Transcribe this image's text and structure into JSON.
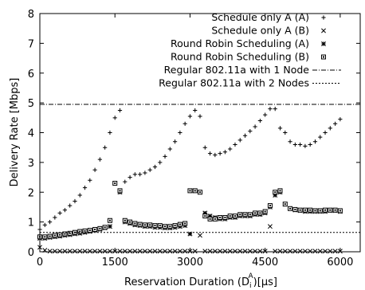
{
  "chart_data": {
    "type": "scatter",
    "xlabel": "Reservation Duration  (D",
    "xlabel_sub": "i",
    "xlabel_sup": "A",
    "xlabel_unit": ")[µs]",
    "ylabel": "Delivery Rate [Mbps]",
    "xlim": [
      0,
      6400
    ],
    "ylim": [
      0,
      8
    ],
    "xticks": [
      0,
      1500,
      3000,
      4500,
      6000
    ],
    "yticks": [
      0,
      1,
      2,
      3,
      4,
      5,
      6,
      7,
      8
    ],
    "legend_position": "top-right",
    "series": [
      {
        "name": "Schedule only A (A)",
        "marker": "plus",
        "x": [
          0,
          100,
          200,
          300,
          400,
          500,
          600,
          700,
          800,
          900,
          1000,
          1100,
          1200,
          1300,
          1400,
          1500,
          1600,
          1700,
          1800,
          1900,
          2000,
          2100,
          2200,
          2300,
          2400,
          2500,
          2600,
          2700,
          2800,
          2900,
          3000,
          3100,
          3200,
          3300,
          3400,
          3500,
          3600,
          3700,
          3800,
          3900,
          4000,
          4100,
          4200,
          4300,
          4400,
          4500,
          4600,
          4700,
          4800,
          4900,
          5000,
          5100,
          5200,
          5300,
          5400,
          5500,
          5600,
          5700,
          5800,
          5900,
          6000
        ],
        "y": [
          0.75,
          0.9,
          1.0,
          1.15,
          1.3,
          1.4,
          1.55,
          1.7,
          1.9,
          2.15,
          2.4,
          2.75,
          3.1,
          3.5,
          4.0,
          4.5,
          4.75,
          2.35,
          2.5,
          2.6,
          2.6,
          2.65,
          2.75,
          2.85,
          3.0,
          3.2,
          3.45,
          3.7,
          4.0,
          4.3,
          4.55,
          4.75,
          4.55,
          3.5,
          3.3,
          3.25,
          3.3,
          3.35,
          3.45,
          3.6,
          3.75,
          3.9,
          4.05,
          4.2,
          4.4,
          4.6,
          4.8,
          4.8,
          4.15,
          4.0,
          3.7,
          3.6,
          3.6,
          3.55,
          3.6,
          3.7,
          3.85,
          4.0,
          4.15,
          4.3,
          4.45
        ]
      },
      {
        "name": "Schedule only A (B)",
        "marker": "cross",
        "x": [
          0,
          100,
          200,
          300,
          400,
          500,
          600,
          700,
          800,
          900,
          1000,
          1100,
          1200,
          1300,
          1400,
          1500,
          1600,
          1700,
          1800,
          1900,
          2000,
          2100,
          2200,
          2300,
          2400,
          2500,
          2600,
          2700,
          2800,
          2900,
          3000,
          3100,
          3200,
          3300,
          3400,
          3500,
          3600,
          3700,
          3800,
          3900,
          4000,
          4100,
          4200,
          4300,
          4400,
          4500,
          4600,
          4700,
          4800,
          4900,
          5000,
          5100,
          5200,
          5300,
          5400,
          5500,
          5600,
          5700,
          5800,
          5900,
          6000
        ],
        "y": [
          0.15,
          0.05,
          0.02,
          0.02,
          0.02,
          0.02,
          0.02,
          0.02,
          0.02,
          0.02,
          0.02,
          0.02,
          0.02,
          0.02,
          0.02,
          0.02,
          0.02,
          0.02,
          0.02,
          0.02,
          0.02,
          0.02,
          0.02,
          0.02,
          0.02,
          0.02,
          0.02,
          0.02,
          0.02,
          0.02,
          0.02,
          0.02,
          0.55,
          0.02,
          0.02,
          0.02,
          0.02,
          0.02,
          0.02,
          0.02,
          0.02,
          0.02,
          0.02,
          0.02,
          0.02,
          0.02,
          0.85,
          0.02,
          0.02,
          0.02,
          0.02,
          0.02,
          0.02,
          0.02,
          0.02,
          0.02,
          0.02,
          0.02,
          0.02,
          0.02,
          0.02
        ]
      },
      {
        "name": "Round Robin Scheduling (A)",
        "marker": "asterisk",
        "x": [
          0,
          100,
          200,
          300,
          400,
          500,
          600,
          700,
          800,
          900,
          1000,
          1100,
          1200,
          1300,
          1400,
          1500,
          1600,
          1700,
          1800,
          1900,
          2000,
          2100,
          2200,
          2300,
          2400,
          2500,
          2600,
          2700,
          2800,
          2900,
          3000,
          3100,
          3200,
          3300,
          3400,
          3500,
          3600,
          3700,
          3800,
          3900,
          4000,
          4100,
          4200,
          4300,
          4400,
          4500,
          4600,
          4700,
          4800,
          4900,
          5000,
          5100,
          5200,
          5300,
          5400,
          5500,
          5600,
          5700,
          5800,
          5900,
          6000
        ],
        "y": [
          0.45,
          0.45,
          0.48,
          0.5,
          0.52,
          0.55,
          0.57,
          0.6,
          0.62,
          0.65,
          0.68,
          0.72,
          0.75,
          0.8,
          0.85,
          2.3,
          2.0,
          1.0,
          0.95,
          0.9,
          0.88,
          0.85,
          0.85,
          0.82,
          0.82,
          0.8,
          0.8,
          0.82,
          0.85,
          0.88,
          0.6,
          2.05,
          2.0,
          1.3,
          1.2,
          1.15,
          1.1,
          1.1,
          1.15,
          1.15,
          1.2,
          1.2,
          1.2,
          1.25,
          1.25,
          1.3,
          1.5,
          1.9,
          2.0,
          1.6,
          1.45,
          1.4,
          1.38,
          1.35,
          1.35,
          1.35,
          1.35,
          1.35,
          1.38,
          1.38,
          1.35
        ]
      },
      {
        "name": "Round Robin Scheduling (B)",
        "marker": "square",
        "x": [
          0,
          100,
          200,
          300,
          400,
          500,
          600,
          700,
          800,
          900,
          1000,
          1100,
          1200,
          1300,
          1400,
          1500,
          1600,
          1700,
          1800,
          1900,
          2000,
          2100,
          2200,
          2300,
          2400,
          2500,
          2600,
          2700,
          2800,
          2900,
          3000,
          3100,
          3200,
          3300,
          3400,
          3500,
          3600,
          3700,
          3800,
          3900,
          4000,
          4100,
          4200,
          4300,
          4400,
          4500,
          4600,
          4700,
          4800,
          4900,
          5000,
          5100,
          5200,
          5300,
          5400,
          5500,
          5600,
          5700,
          5800,
          5900,
          6000
        ],
        "y": [
          0.5,
          0.5,
          0.52,
          0.55,
          0.57,
          0.6,
          0.62,
          0.65,
          0.68,
          0.7,
          0.72,
          0.75,
          0.78,
          0.82,
          1.05,
          2.3,
          2.05,
          1.05,
          1.0,
          0.95,
          0.92,
          0.9,
          0.9,
          0.88,
          0.88,
          0.85,
          0.85,
          0.88,
          0.92,
          0.95,
          2.05,
          2.05,
          2.0,
          1.2,
          1.1,
          1.1,
          1.15,
          1.15,
          1.2,
          1.2,
          1.25,
          1.25,
          1.25,
          1.3,
          1.3,
          1.35,
          1.55,
          2.0,
          2.05,
          1.6,
          1.45,
          1.42,
          1.4,
          1.4,
          1.4,
          1.38,
          1.38,
          1.4,
          1.4,
          1.4,
          1.38
        ]
      },
      {
        "name": "Regular 802.11a with 1 Node",
        "marker": "dash-dot-line",
        "constant": 4.95
      },
      {
        "name": "Regular 802.11a with 2 Nodes",
        "marker": "dotted-line",
        "constant": 0.65
      }
    ]
  }
}
